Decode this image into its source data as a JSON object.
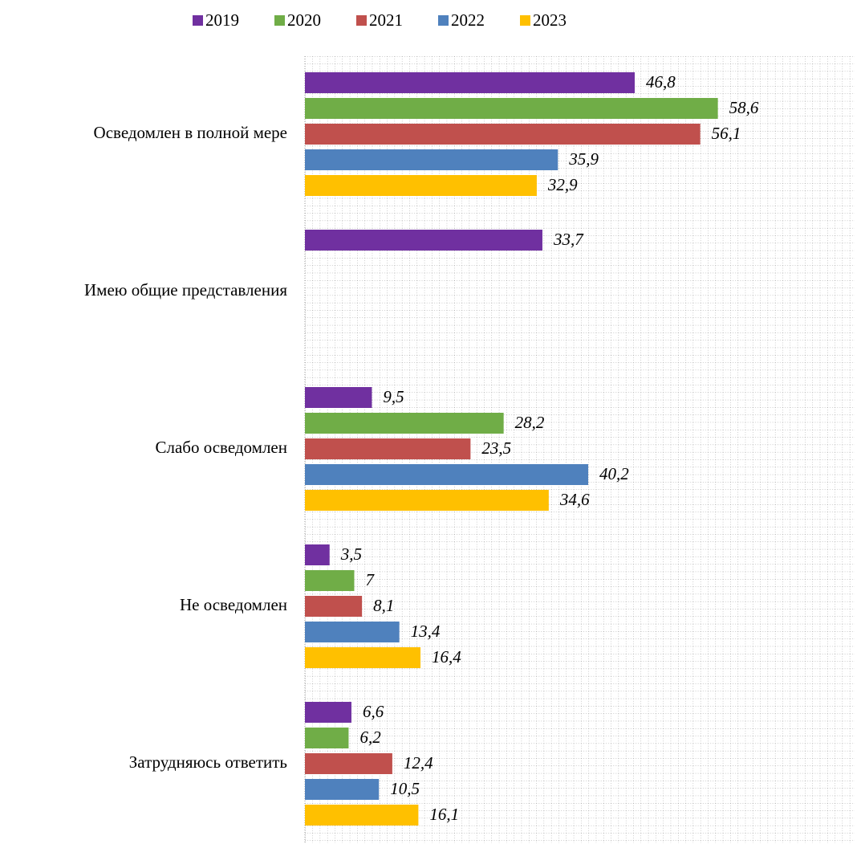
{
  "chart_data": {
    "type": "bar",
    "orientation": "horizontal",
    "categories": [
      "Осведомлен в полной мере",
      "Имею общие представления",
      "Слабо осведомлен",
      "Не осведомлен",
      "Затрудняюсь ответить"
    ],
    "series": [
      {
        "name": "2019",
        "color": "#7030a0",
        "values": [
          46.8,
          33.7,
          9.5,
          3.5,
          6.6
        ],
        "value_labels": [
          "46,8",
          "33,7",
          "9,5",
          "3,5",
          "6,6"
        ]
      },
      {
        "name": "2020",
        "color": "#70ad47",
        "values": [
          58.6,
          null,
          28.2,
          7,
          6.2
        ],
        "value_labels": [
          "58,6",
          null,
          "28,2",
          "7",
          "6,2"
        ]
      },
      {
        "name": "2021",
        "color": "#c0504d",
        "values": [
          56.1,
          null,
          23.5,
          8.1,
          12.4
        ],
        "value_labels": [
          "56,1",
          null,
          "23,5",
          "8,1",
          "12,4"
        ]
      },
      {
        "name": "2022",
        "color": "#4f81bd",
        "values": [
          35.9,
          null,
          40.2,
          13.4,
          10.5
        ],
        "value_labels": [
          "35,9",
          null,
          "40,2",
          "13,4",
          "10,5"
        ]
      },
      {
        "name": "2023",
        "color": "#ffc000",
        "values": [
          32.9,
          null,
          34.6,
          16.4,
          16.1
        ],
        "value_labels": [
          "32,9",
          null,
          "34,6",
          "16,4",
          "16,1"
        ]
      }
    ],
    "xlim": [
      0,
      78
    ],
    "grid": true,
    "legend": "top"
  }
}
